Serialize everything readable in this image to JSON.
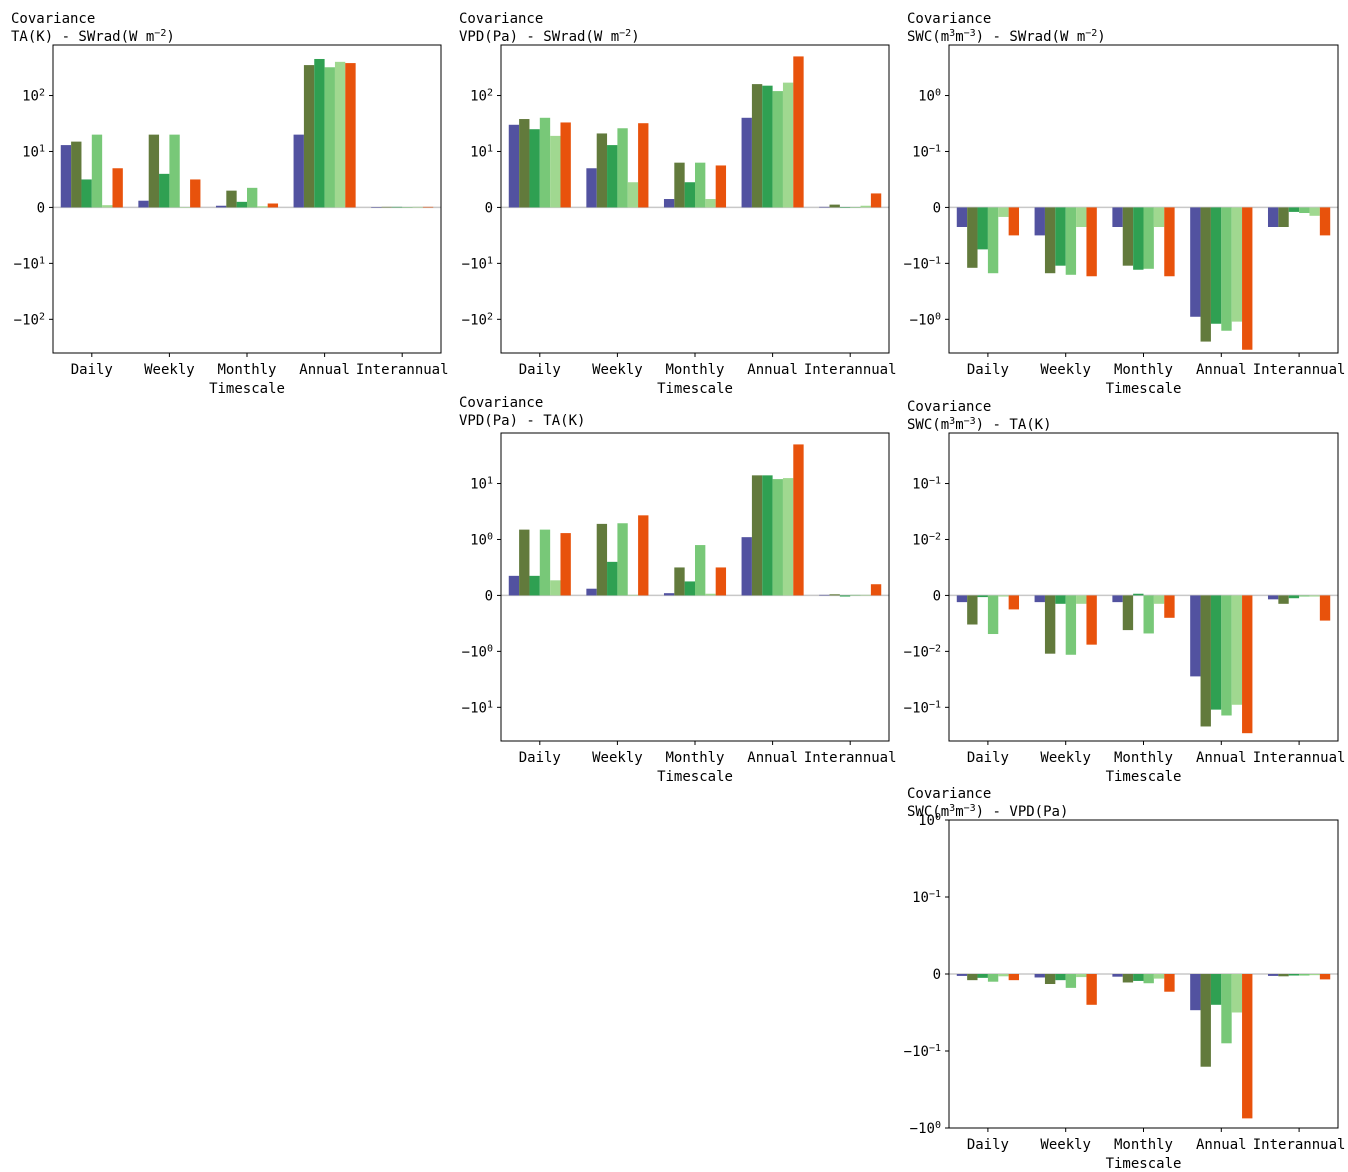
{
  "colors": [
    "#5252a0",
    "#627a3c",
    "#2fa052",
    "#78c878",
    "#a0d890",
    "#e8520c"
  ],
  "chart_data": [
    {
      "type": "bar",
      "title": "Covariance",
      "subtitle": "TA(K) - SWrad(W m",
      "subtitle_sup": "−2",
      "subtitle_end": ")",
      "xlabel": "Timescale",
      "ylabel": "",
      "yscale": "symlog",
      "ylim": [
        -400,
        800
      ],
      "yticks": [
        {
          "v": 100,
          "label": "10",
          "sup": "2"
        },
        {
          "v": 10,
          "label": "10",
          "sup": "1"
        },
        {
          "v": 0,
          "label": "0",
          "sup": ""
        },
        {
          "v": -10,
          "label": "−10",
          "sup": "1"
        },
        {
          "v": -100,
          "label": "−10",
          "sup": "2"
        }
      ],
      "categories": [
        "Daily",
        "Weekly",
        "Monthly",
        "Annual",
        "Interannual"
      ],
      "series": [
        {
          "values": [
            13,
            1.2,
            0.3,
            20,
            -0.05
          ]
        },
        {
          "values": [
            15,
            20,
            3,
            350,
            0.1
          ]
        },
        {
          "values": [
            5,
            6,
            1,
            450,
            0.1
          ]
        },
        {
          "values": [
            20,
            20,
            3.5,
            320,
            0.02
          ]
        },
        {
          "values": [
            0.4,
            -0.05,
            0.2,
            400,
            0.1
          ]
        },
        {
          "values": [
            7,
            5,
            0.7,
            380,
            0.1
          ]
        }
      ]
    },
    {
      "type": "bar",
      "title": "Covariance",
      "subtitle": "VPD(Pa) - SWrad(W m",
      "subtitle_sup": "−2",
      "subtitle_end": ")",
      "xlabel": "Timescale",
      "ylabel": "",
      "yscale": "symlog",
      "ylim": [
        -400,
        800
      ],
      "yticks": [
        {
          "v": 100,
          "label": "10",
          "sup": "2"
        },
        {
          "v": 10,
          "label": "10",
          "sup": "1"
        },
        {
          "v": 0,
          "label": "0",
          "sup": ""
        },
        {
          "v": -10,
          "label": "−10",
          "sup": "1"
        },
        {
          "v": -100,
          "label": "−10",
          "sup": "2"
        }
      ],
      "categories": [
        "Daily",
        "Weekly",
        "Monthly",
        "Annual",
        "Interannual"
      ],
      "series": [
        {
          "values": [
            30,
            7,
            1.5,
            40,
            0.1
          ]
        },
        {
          "values": [
            38,
            21,
            8,
            160,
            0.5
          ]
        },
        {
          "values": [
            25,
            13,
            4.5,
            150,
            0.05
          ]
        },
        {
          "values": [
            40,
            26,
            8,
            120,
            0.02
          ]
        },
        {
          "values": [
            19,
            4.5,
            1.5,
            170,
            0.3
          ]
        },
        {
          "values": [
            33,
            32,
            7.5,
            500,
            2.5
          ]
        }
      ]
    },
    {
      "type": "bar",
      "title": "Covariance",
      "subtitle": "SWC(m",
      "subtitle_sup": "3",
      "subtitle_mid": "m",
      "subtitle_sup2": "−3",
      "subtitle_end": ") - SWrad(W m",
      "subtitle_sup3": "−2",
      "subtitle_end2": ")",
      "xlabel": "Timescale",
      "ylabel": "",
      "yscale": "symlog",
      "ylim": [
        -4,
        8
      ],
      "yticks": [
        {
          "v": 1,
          "label": "10",
          "sup": "0"
        },
        {
          "v": 0.1,
          "label": "10",
          "sup": "−1"
        },
        {
          "v": 0,
          "label": "0",
          "sup": ""
        },
        {
          "v": -0.1,
          "label": "−10",
          "sup": "−1"
        },
        {
          "v": -1,
          "label": "−10",
          "sup": "0"
        }
      ],
      "categories": [
        "Daily",
        "Weekly",
        "Monthly",
        "Annual",
        "Interannual"
      ],
      "series": [
        {
          "values": [
            -0.035,
            -0.05,
            -0.035,
            -0.9,
            -0.035
          ]
        },
        {
          "values": [
            -0.12,
            -0.15,
            -0.11,
            -2.5,
            -0.035
          ]
        },
        {
          "values": [
            -0.075,
            -0.11,
            -0.13,
            -1.2,
            -0.008
          ]
        },
        {
          "values": [
            -0.15,
            -0.16,
            -0.125,
            -1.6,
            -0.01
          ]
        },
        {
          "values": [
            -0.017,
            -0.035,
            -0.035,
            -1.1,
            -0.015
          ]
        },
        {
          "values": [
            -0.05,
            -0.17,
            -0.17,
            -3.5,
            -0.05
          ]
        }
      ]
    },
    {
      "type": "bar",
      "title": "Covariance",
      "subtitle": "VPD(Pa) - TA(K)",
      "xlabel": "Timescale",
      "ylabel": "",
      "yscale": "symlog",
      "ylim": [
        -40,
        80
      ],
      "yticks": [
        {
          "v": 10,
          "label": "10",
          "sup": "1"
        },
        {
          "v": 1,
          "label": "10",
          "sup": "0"
        },
        {
          "v": 0,
          "label": "0",
          "sup": ""
        },
        {
          "v": -1,
          "label": "−10",
          "sup": "0"
        },
        {
          "v": -10,
          "label": "−10",
          "sup": "1"
        }
      ],
      "categories": [
        "Daily",
        "Weekly",
        "Monthly",
        "Annual",
        "Interannual"
      ],
      "series": [
        {
          "values": [
            0.35,
            0.12,
            0.04,
            1.1,
            0.01
          ]
        },
        {
          "values": [
            1.5,
            1.9,
            0.5,
            14,
            0.02
          ]
        },
        {
          "values": [
            0.35,
            0.6,
            0.25,
            14,
            -0.02
          ]
        },
        {
          "values": [
            1.5,
            1.95,
            0.9,
            12,
            0.01
          ]
        },
        {
          "values": [
            0.27,
            0.01,
            0.03,
            12.5,
            0.01
          ]
        },
        {
          "values": [
            1.3,
            2.7,
            0.5,
            50,
            0.2
          ]
        }
      ]
    },
    {
      "type": "bar",
      "title": "Covariance",
      "subtitle": "SWC(m",
      "subtitle_sup": "3",
      "subtitle_mid": "m",
      "subtitle_sup2": "−3",
      "subtitle_end": ") - TA(K)",
      "xlabel": "Timescale",
      "ylabel": "",
      "yscale": "symlog",
      "ylim": [
        -0.4,
        0.8
      ],
      "yticks": [
        {
          "v": 0.1,
          "label": "10",
          "sup": "−1"
        },
        {
          "v": 0.01,
          "label": "10",
          "sup": "−2"
        },
        {
          "v": 0,
          "label": "0",
          "sup": ""
        },
        {
          "v": -0.01,
          "label": "−10",
          "sup": "−2"
        },
        {
          "v": -0.1,
          "label": "−10",
          "sup": "−1"
        }
      ],
      "categories": [
        "Daily",
        "Weekly",
        "Monthly",
        "Annual",
        "Interannual"
      ],
      "series": [
        {
          "values": [
            -0.0012,
            -0.0012,
            -0.0012,
            -0.028,
            -0.0007
          ]
        },
        {
          "values": [
            -0.0052,
            -0.011,
            -0.0062,
            -0.22,
            -0.0015
          ]
        },
        {
          "values": [
            -0.0003,
            -0.0015,
            0.0003,
            -0.11,
            -0.0005
          ]
        },
        {
          "values": [
            -0.0069,
            -0.0115,
            -0.0068,
            -0.14,
            -0.0002
          ]
        },
        {
          "values": [
            -0.0002,
            -0.0015,
            -0.0015,
            -0.09,
            -0.0002
          ]
        },
        {
          "values": [
            -0.0025,
            -0.0088,
            -0.004,
            -0.29,
            -0.0045
          ]
        }
      ]
    },
    {
      "type": "bar",
      "title": "Covariance",
      "subtitle": "SWC(m",
      "subtitle_sup": "3",
      "subtitle_mid": "m",
      "subtitle_sup2": "−3",
      "subtitle_end": ") - VPD(Pa)",
      "xlabel": "Timescale",
      "ylabel": "",
      "yscale": "symlog",
      "ylim": [
        -1,
        1
      ],
      "yticks": [
        {
          "v": 1,
          "label": "10",
          "sup": "0"
        },
        {
          "v": 0.1,
          "label": "10",
          "sup": "−1"
        },
        {
          "v": 0,
          "label": "0",
          "sup": ""
        },
        {
          "v": -0.1,
          "label": "−10",
          "sup": "−1"
        },
        {
          "v": -1,
          "label": "−10",
          "sup": "0"
        }
      ],
      "categories": [
        "Daily",
        "Weekly",
        "Monthly",
        "Annual",
        "Interannual"
      ],
      "series": [
        {
          "values": [
            -0.0025,
            -0.0045,
            -0.0035,
            -0.047,
            -0.0025
          ]
        },
        {
          "values": [
            -0.008,
            -0.013,
            -0.011,
            -0.16,
            -0.003
          ]
        },
        {
          "values": [
            -0.005,
            -0.008,
            -0.009,
            -0.04,
            -0.002
          ]
        },
        {
          "values": [
            -0.01,
            -0.018,
            -0.012,
            -0.09,
            -0.002
          ]
        },
        {
          "values": [
            -0.003,
            -0.004,
            -0.006,
            -0.05,
            -0.0015
          ]
        },
        {
          "values": [
            -0.008,
            -0.04,
            -0.023,
            -0.75,
            -0.007
          ]
        }
      ]
    }
  ]
}
